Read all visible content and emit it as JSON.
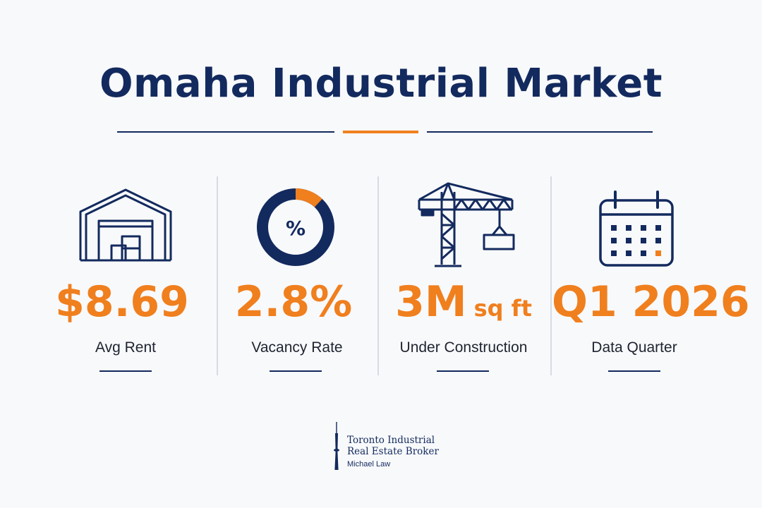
{
  "title": "Omaha Industrial Market",
  "stats": [
    {
      "icon": "warehouse-icon",
      "value": "$8.69",
      "unit": "",
      "label": "Avg Rent"
    },
    {
      "icon": "percent-donut-icon",
      "icon_text": "%",
      "donut_fraction": 0.12,
      "value": "2.8%",
      "unit": "",
      "label": "Vacancy Rate"
    },
    {
      "icon": "construction-crane-icon",
      "value": "3M",
      "unit": "sq ft",
      "label": "Under Construction"
    },
    {
      "icon": "calendar-icon",
      "value": "Q1 2026",
      "unit": "",
      "label": "Data Quarter"
    }
  ],
  "footer": {
    "icon": "cn-tower-icon",
    "line1": "Toronto Industrial",
    "line2": "Real Estate Broker",
    "line3": "Michael Law"
  },
  "colors": {
    "navy": "#132a5e",
    "orange": "#f07f1e",
    "divider": "#d7dbe2"
  }
}
